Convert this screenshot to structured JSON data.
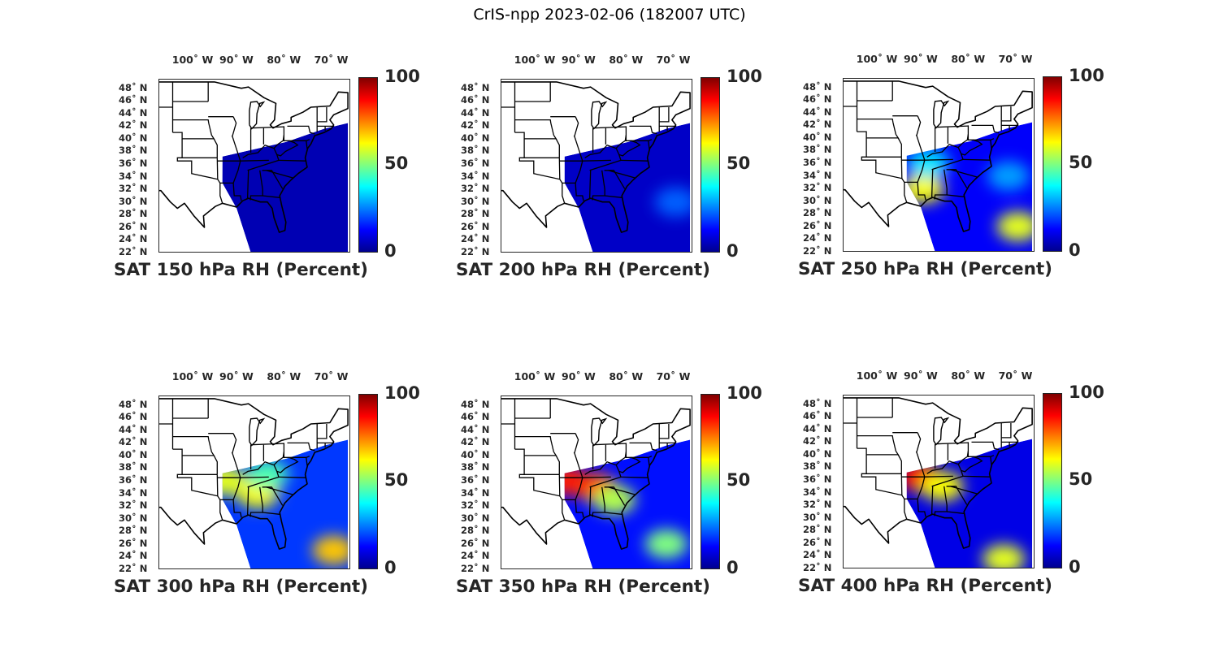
{
  "title": "CrIS-npp 2023-02-06 (182007 UTC)",
  "lon_ticks": [
    {
      "value": -100,
      "label": "100˚ W"
    },
    {
      "value": -90,
      "label": "90˚ W"
    },
    {
      "value": -80,
      "label": "80˚ W"
    },
    {
      "value": -70,
      "label": "70˚ W"
    }
  ],
  "lat_ticks": [
    {
      "value": 48,
      "label": "48˚ N"
    },
    {
      "value": 46,
      "label": "46˚ N"
    },
    {
      "value": 44,
      "label": "44˚ N"
    },
    {
      "value": 42,
      "label": "42˚ N"
    },
    {
      "value": 40,
      "label": "40˚ N"
    },
    {
      "value": 38,
      "label": "38˚ N"
    },
    {
      "value": 36,
      "label": "36˚ N"
    },
    {
      "value": 34,
      "label": "34˚ N"
    },
    {
      "value": 32,
      "label": "32˚ N"
    },
    {
      "value": 30,
      "label": "30˚ N"
    },
    {
      "value": 28,
      "label": "28˚ N"
    },
    {
      "value": 26,
      "label": "26˚ N"
    },
    {
      "value": 24,
      "label": "24˚ N"
    },
    {
      "value": 22,
      "label": "22˚ N"
    }
  ],
  "colorbar": {
    "min_label": "0",
    "mid_label": "50",
    "max_label": "100",
    "colormap": "jet"
  },
  "panels": [
    {
      "id": "150",
      "title": "SAT 150 hPa RH (Percent)",
      "level": 150,
      "regions": [
        {
          "lon": -90,
          "lat": 33,
          "rh": 5
        }
      ],
      "background_rh": 5
    },
    {
      "id": "200",
      "title": "SAT 200 hPa RH (Percent)",
      "level": 200,
      "regions": [
        {
          "lon": -70,
          "lat": 30,
          "rh": 22
        }
      ],
      "background_rh": 7
    },
    {
      "id": "250",
      "title": "SAT 250 hPa RH (Percent)",
      "level": 250,
      "regions": [
        {
          "lon": -90,
          "lat": 32,
          "rh": 62
        },
        {
          "lon": -89,
          "lat": 36,
          "rh": 35
        },
        {
          "lon": -70,
          "lat": 26,
          "rh": 60
        },
        {
          "lon": -72,
          "lat": 34,
          "rh": 28
        }
      ],
      "background_rh": 12
    },
    {
      "id": "300",
      "title": "SAT 300 hPa RH (Percent)",
      "level": 300,
      "regions": [
        {
          "lon": -86,
          "lat": 34,
          "rh": 62
        },
        {
          "lon": -84,
          "lat": 37,
          "rh": 45
        },
        {
          "lon": -93,
          "lat": 36,
          "rh": 60
        },
        {
          "lon": -70,
          "lat": 25,
          "rh": 68
        }
      ],
      "background_rh": 18
    },
    {
      "id": "350",
      "title": "SAT 350 hPa RH (Percent)",
      "level": 350,
      "regions": [
        {
          "lon": -87,
          "lat": 35,
          "rh": 80
        },
        {
          "lon": -93,
          "lat": 36,
          "rh": 85
        },
        {
          "lon": -83,
          "lat": 33,
          "rh": 55
        },
        {
          "lon": -72,
          "lat": 26,
          "rh": 50
        }
      ],
      "background_rh": 14
    },
    {
      "id": "400",
      "title": "SAT 400 hPa RH (Percent)",
      "level": 400,
      "regions": [
        {
          "lon": -91,
          "lat": 36.5,
          "rh": 88
        },
        {
          "lon": -86,
          "lat": 35,
          "rh": 62
        },
        {
          "lon": -73,
          "lat": 23.5,
          "rh": 60
        }
      ],
      "background_rh": 10
    }
  ]
}
